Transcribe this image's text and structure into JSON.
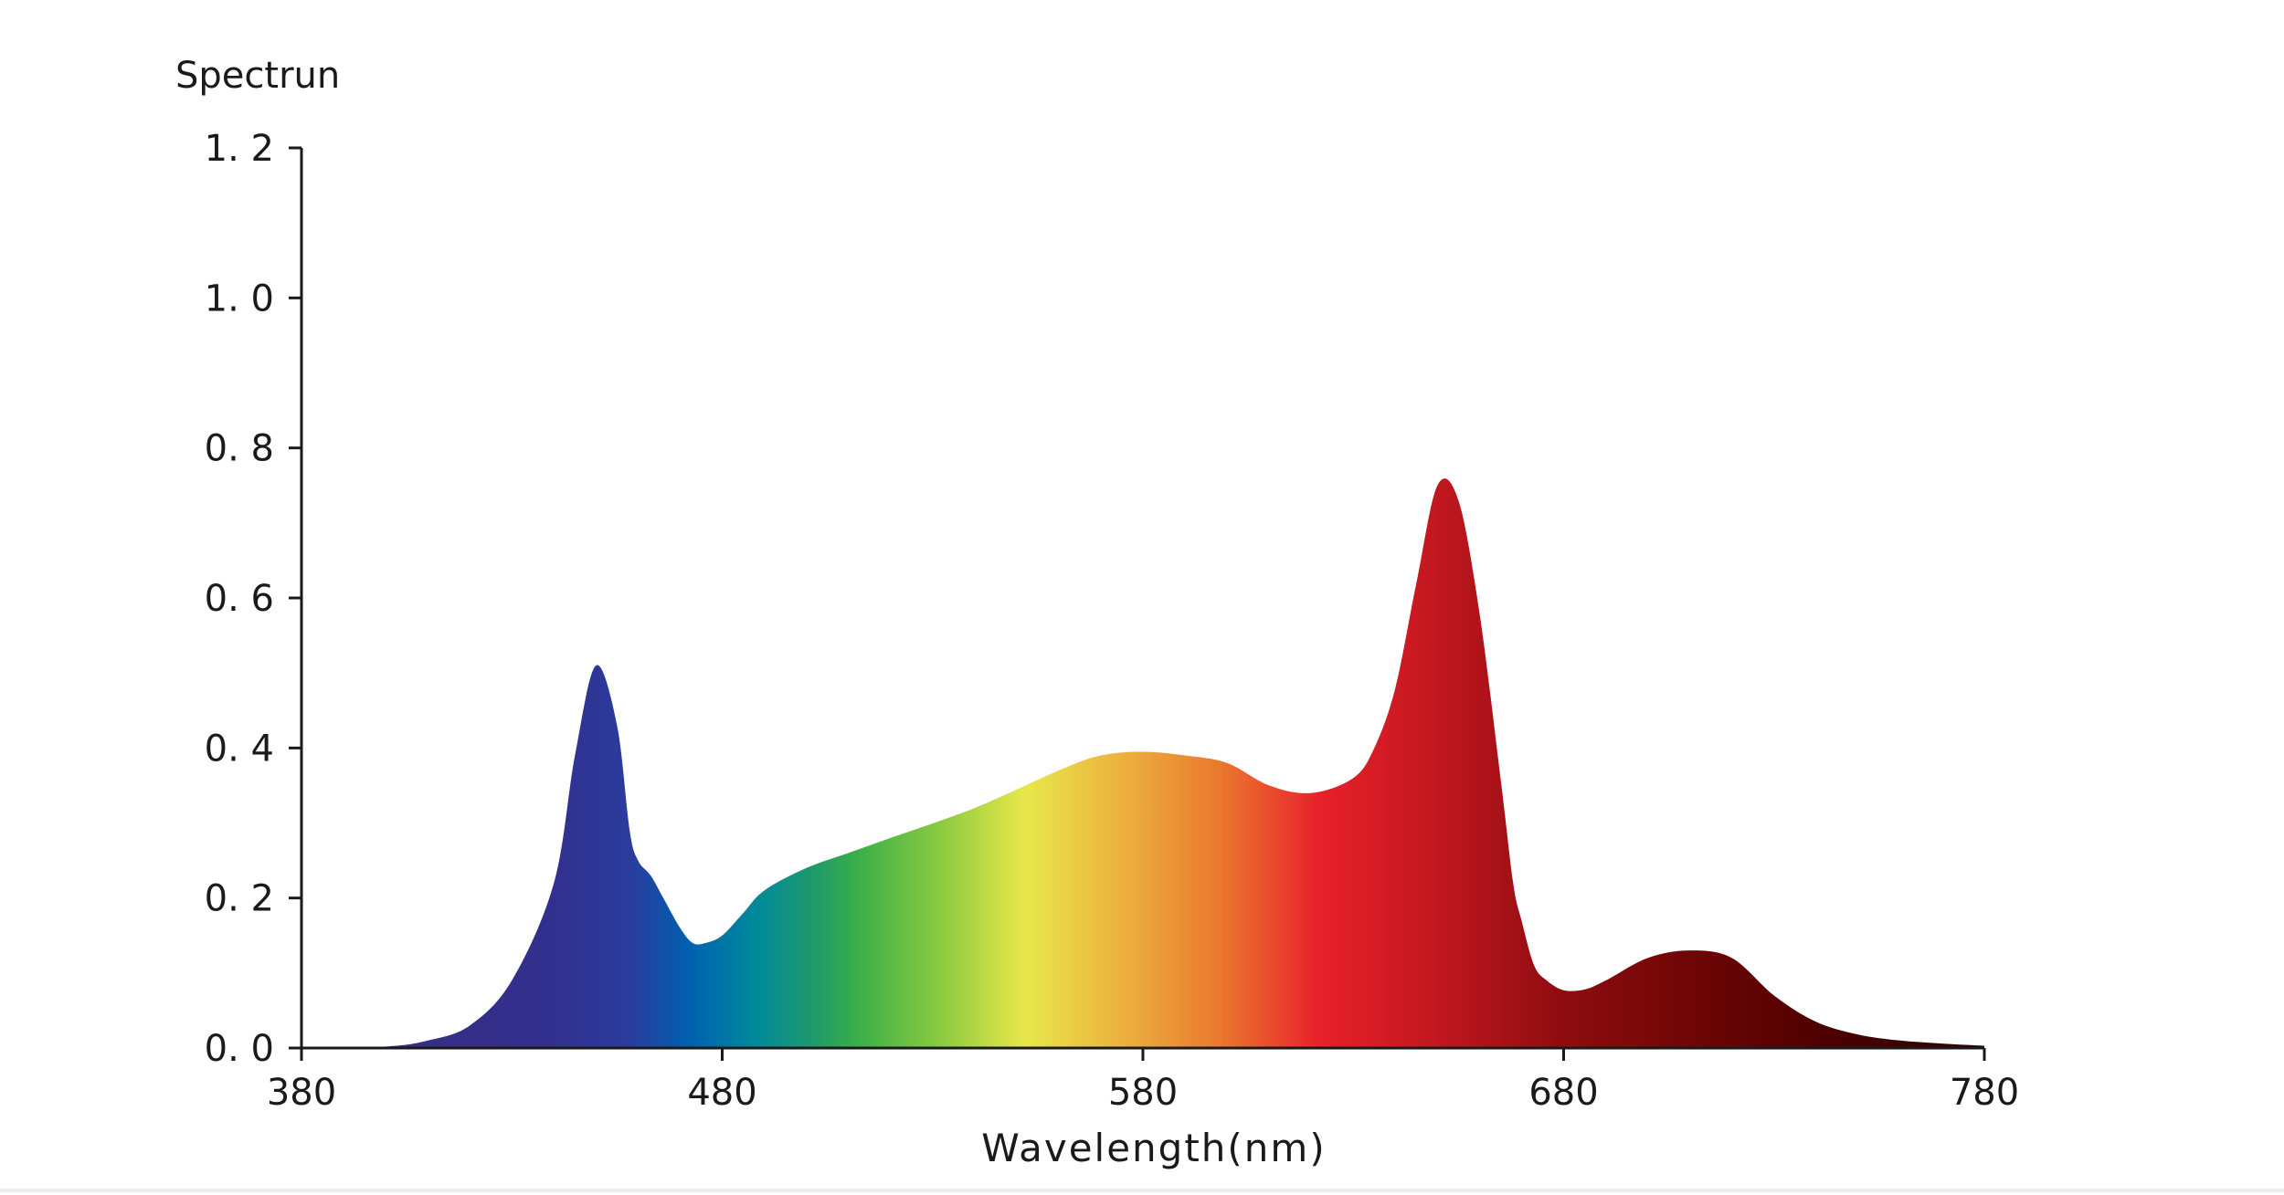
{
  "chart_data": {
    "type": "area",
    "ylabel": "Spectrun",
    "xlabel": "Wavelength(nm)",
    "xlim": [
      380,
      780
    ],
    "ylim": [
      0,
      1.2
    ],
    "x_ticks": [
      380,
      480,
      580,
      680,
      780
    ],
    "x_tick_labels": [
      "380",
      "480",
      "580",
      "680",
      "780"
    ],
    "y_ticks": [
      0,
      0.2,
      0.4,
      0.6,
      0.8,
      1.0,
      1.2
    ],
    "y_tick_labels": [
      "0. 0",
      "0. 2",
      "0. 4",
      "0. 6",
      "0. 8",
      "1. 0",
      "1. 2"
    ],
    "grid": false,
    "fill": "visible-spectrum-gradient",
    "series": [
      {
        "x": [
          380,
          400,
          410,
          420,
          430,
          440,
          445,
          450,
          455,
          458,
          460,
          463,
          466,
          470,
          473,
          476,
          480,
          485,
          490,
          500,
          510,
          520,
          540,
          560,
          570,
          580,
          590,
          600,
          610,
          620,
          630,
          635,
          640,
          645,
          650,
          655,
          660,
          665,
          668,
          670,
          673,
          676,
          680,
          685,
          690,
          700,
          710,
          720,
          730,
          740,
          750,
          760,
          770,
          780
        ],
        "y": [
          0,
          0.002,
          0.01,
          0.03,
          0.09,
          0.22,
          0.39,
          0.51,
          0.43,
          0.29,
          0.25,
          0.23,
          0.2,
          0.16,
          0.14,
          0.14,
          0.15,
          0.18,
          0.21,
          0.24,
          0.26,
          0.28,
          0.32,
          0.37,
          0.39,
          0.395,
          0.39,
          0.38,
          0.35,
          0.34,
          0.36,
          0.4,
          0.48,
          0.62,
          0.75,
          0.73,
          0.58,
          0.36,
          0.22,
          0.17,
          0.11,
          0.09,
          0.077,
          0.078,
          0.09,
          0.12,
          0.13,
          0.12,
          0.07,
          0.035,
          0.018,
          0.01,
          0.006,
          0.003
        ]
      }
    ],
    "gradient_stops": [
      {
        "x": 380,
        "color": "#3a2a7a"
      },
      {
        "x": 440,
        "color": "#32308f"
      },
      {
        "x": 458,
        "color": "#2a3c9c"
      },
      {
        "x": 472,
        "color": "#0060b0"
      },
      {
        "x": 488,
        "color": "#008a9a"
      },
      {
        "x": 502,
        "color": "#1f9a6a"
      },
      {
        "x": 512,
        "color": "#3aaf48"
      },
      {
        "x": 532,
        "color": "#8ccb40"
      },
      {
        "x": 552,
        "color": "#e8e84a"
      },
      {
        "x": 572,
        "color": "#ebb840"
      },
      {
        "x": 598,
        "color": "#ea7a2e"
      },
      {
        "x": 622,
        "color": "#e8202a"
      },
      {
        "x": 648,
        "color": "#c41820"
      },
      {
        "x": 680,
        "color": "#8e0c10"
      },
      {
        "x": 700,
        "color": "#7a0808"
      },
      {
        "x": 740,
        "color": "#500000"
      },
      {
        "x": 780,
        "color": "#2a0404"
      }
    ]
  }
}
